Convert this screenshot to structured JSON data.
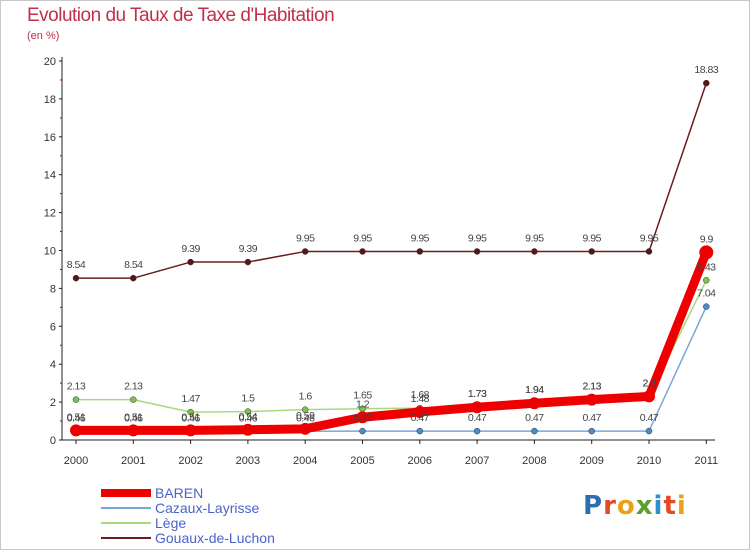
{
  "title": "Evolution du Taux de Taxe d'Habitation",
  "subtitle": "(en %)",
  "logo": {
    "text": "Proxiti",
    "letter_colors": [
      "#2f6db3",
      "#e34a2a",
      "#e8a21a",
      "#5aa02c",
      "#2f8fd0",
      "#e34a2a",
      "#e8a21a"
    ]
  },
  "chart_data": {
    "type": "line",
    "x": [
      "2000",
      "2001",
      "2002",
      "2003",
      "2004",
      "2005",
      "2006",
      "2007",
      "2008",
      "2009",
      "2010",
      "2011"
    ],
    "ylim": [
      0,
      20
    ],
    "yticks": [
      0,
      2,
      4,
      6,
      8,
      10,
      12,
      14,
      16,
      18,
      20
    ],
    "grid": false,
    "legend_position": "bottom-left",
    "series": [
      {
        "name": "Gouaux-de-Luchon",
        "color": "#6b1e1e",
        "line_width": 1.5,
        "marker_color": "#5a1515",
        "values": [
          8.54,
          8.54,
          9.39,
          9.39,
          9.95,
          9.95,
          9.95,
          9.95,
          9.95,
          9.95,
          9.95,
          18.83
        ],
        "labels": [
          "8.54",
          "8.54",
          "9.39",
          "9.39",
          "9.95",
          "9.95",
          "9.95",
          "9.95",
          "9.95",
          "9.95",
          "9.95",
          "18.83"
        ]
      },
      {
        "name": "Lège",
        "color": "#a8d880",
        "line_width": 1.5,
        "marker_color": "#7cc34a",
        "values": [
          2.13,
          2.13,
          1.47,
          1.5,
          1.6,
          1.65,
          1.68,
          1.73,
          1.94,
          2.13,
          2.3,
          8.43
        ],
        "labels": [
          "2.13",
          "2.13",
          "1.47",
          "1.5",
          "1.6",
          "1.65",
          "1.68",
          "1.73",
          "1.94",
          "2.13",
          "2.3",
          "8.43"
        ]
      },
      {
        "name": "Cazaux-Layrisse",
        "color": "#7aa7d6",
        "line_width": 1.5,
        "marker_color": "#4a8ccc",
        "values": [
          0.46,
          0.46,
          0.46,
          0.46,
          0.46,
          0.47,
          0.47,
          0.47,
          0.47,
          0.47,
          0.47,
          7.04
        ],
        "labels": [
          "0.46",
          "0.46",
          "0.46",
          "0.46",
          "0.46",
          "0.47",
          "0.47",
          "0.47",
          "0.47",
          "0.47",
          "0.47",
          "7.04"
        ]
      },
      {
        "name": "BAREN",
        "color": "#ee0000",
        "line_width": 9,
        "marker_color": "#ee0000",
        "values": [
          0.51,
          0.51,
          0.51,
          0.54,
          0.59,
          1.2,
          1.48,
          1.73,
          1.94,
          2.13,
          2.3,
          9.9
        ],
        "labels": [
          "0.51",
          "0.51",
          "0.51",
          "0.54",
          "0.59",
          "1.2",
          "1.48",
          "1.73",
          "1.94",
          "2.13",
          "2.3",
          "9.9"
        ]
      }
    ],
    "legend_order": [
      "BAREN",
      "Cazaux-Layrisse",
      "Lège",
      "Gouaux-de-Luchon"
    ]
  }
}
